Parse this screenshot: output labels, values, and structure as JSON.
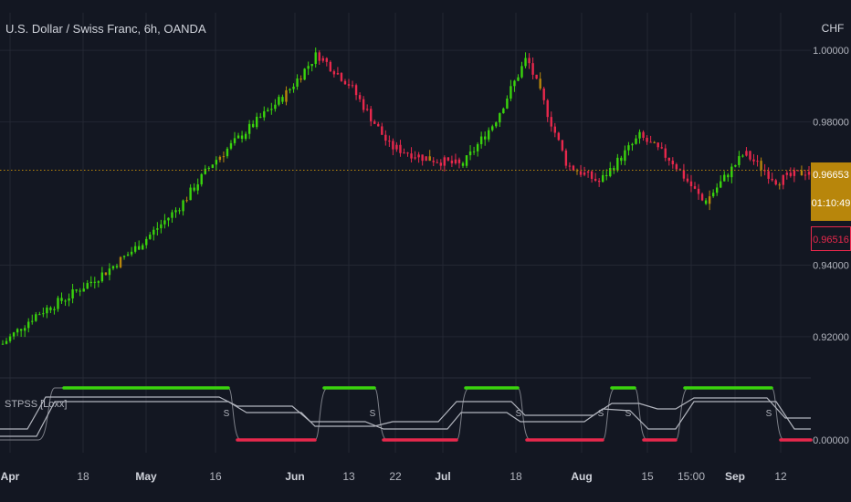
{
  "header": {
    "symbol_title": "U.S. Dollar / Swiss Franc, 6h, OANDA",
    "currency": "CHF"
  },
  "indicator": {
    "label": "STPSS [Loxx]"
  },
  "price_labels": {
    "last_price": "0.96653",
    "countdown": "01:10:49",
    "bid_price": "0.96516"
  },
  "chart_data": {
    "type": "candlestick",
    "title": "U.S. Dollar / Swiss Franc, 6h, OANDA",
    "y_unit": "CHF",
    "price_axis": {
      "ticks": [
        "1.00000",
        "0.98000",
        "0.94000",
        "0.92000"
      ],
      "ylim": [
        0.909,
        1.0105
      ]
    },
    "x_ticks": [
      "Apr",
      "18",
      "May",
      "16",
      "Jun",
      "13",
      "22",
      "Jul",
      "18",
      "Aug",
      "15",
      "15:00",
      "Sep",
      "12"
    ],
    "grid": true,
    "price_path": {
      "x_index": [
        0,
        4,
        8,
        13,
        17,
        22,
        26,
        30,
        35,
        39,
        43,
        48,
        52,
        57,
        61,
        65,
        70,
        74,
        79,
        83,
        87,
        92,
        96,
        100
      ],
      "close": [
        0.918,
        0.926,
        0.931,
        0.9385,
        0.9457,
        0.9565,
        0.9685,
        0.977,
        0.9875,
        0.999,
        0.9905,
        0.9732,
        0.9702,
        0.9678,
        0.98,
        0.998,
        0.968,
        0.9632,
        0.976,
        0.9692,
        0.9573,
        0.9713,
        0.9635,
        0.9665
      ],
      "trend": [
        "down",
        "up",
        "up",
        "up",
        "up",
        "up",
        "up",
        "up",
        "up",
        "up",
        "down",
        "down",
        "down",
        "down",
        "up",
        "up",
        "down",
        "down",
        "up",
        "down",
        "down",
        "up",
        "down",
        "down"
      ]
    },
    "reference_line": {
      "value": 0.9665,
      "style": "dotted",
      "color": "#b8860b"
    },
    "indicator_panel": {
      "name": "STPSS [Loxx]",
      "y_tick": "0.00000",
      "signals": [
        "S",
        "S",
        "S",
        "S",
        "S",
        "S"
      ]
    },
    "colors": {
      "up": "#3ad40d",
      "down": "#e8284c",
      "neutral": "#b8860b",
      "grid": "#232733",
      "axis_text": "#b2b5be",
      "background": "#131722",
      "indicator_line": "#b2b5be"
    }
  }
}
